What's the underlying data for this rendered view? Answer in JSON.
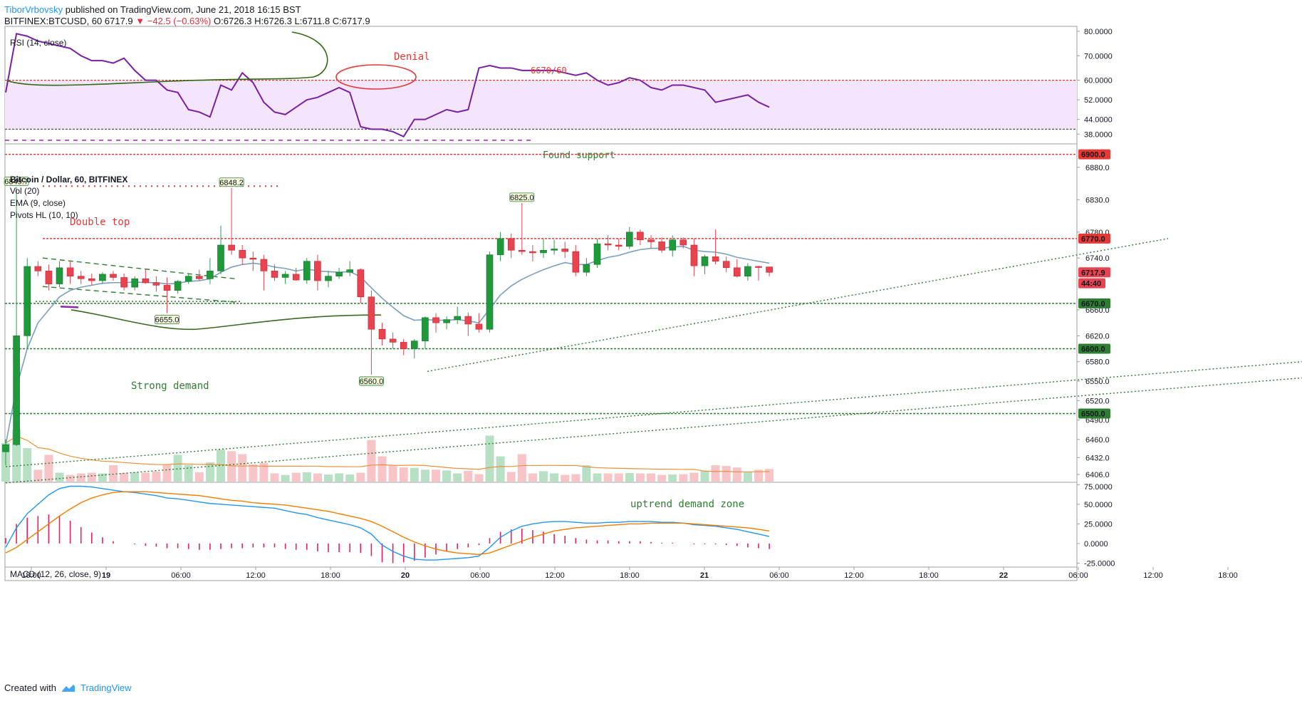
{
  "header": {
    "author": "TiborVrbovsky",
    "published": "published on TradingView.com, June 21, 2018 16:15 BST",
    "symbol": "BITFINEX:BTCUSD, 60",
    "change": "−42.5 (−0.63%)",
    "ohlc": {
      "O": "O:6726.3",
      "H": "H:6726.3",
      "L": "L:6711.8",
      "C": "C:6717.9"
    },
    "last_price": "6717.9"
  },
  "footer": {
    "created_with": "Created with",
    "brand": "TradingView"
  },
  "panes": {
    "rsi": {
      "title": "RSI (14, close)",
      "ticks": [
        "80.0000",
        "70.0000",
        "60.0000",
        "52.0000",
        "44.0000",
        "38.0000"
      ]
    },
    "price": {
      "title": "Bitcoin / Dollar, 60, BITFINEX",
      "indicators": [
        "Vol (20)",
        "EMA (9, close)",
        "Pivots HL (10, 10)"
      ],
      "ticks": [
        "6880.0",
        "6830.0",
        "6780.0",
        "6740.0",
        "6660.0",
        "6620.0",
        "6580.0",
        "6550.0",
        "6520.0",
        "6490.0",
        "6460.0",
        "6432.0",
        "6406.0"
      ],
      "price_tags": [
        "6900.0",
        "6770.0",
        "6717.9",
        "44:40",
        "6670.0",
        "6600.0",
        "6500.0"
      ],
      "pivot_labels": [
        "6849.7",
        "6848.2",
        "6825.0",
        "6655.0",
        "6560.0"
      ]
    },
    "macd": {
      "title": "MACD (12, 26, close, 9)",
      "ticks": [
        "75.0000",
        "50.0000",
        "25.0000",
        "0.0000",
        "-25.0000"
      ]
    }
  },
  "annotations": {
    "denial": "Denial",
    "level": "6670/60",
    "found_support": "Found support",
    "double_top": "Double top",
    "strong_demand": "Strong demand",
    "uptrend_zone": "uptrend demand zone"
  },
  "time_axis": [
    "18:00",
    "19",
    "06:00",
    "12:00",
    "18:00",
    "20",
    "06:00",
    "12:00",
    "18:00",
    "21",
    "06:00",
    "12:00",
    "18:00",
    "22",
    "06:00",
    "12:00",
    "18:00"
  ],
  "colors": {
    "up": "#1e9a3a",
    "down": "#e8434f",
    "rsi": "#7b1fa2",
    "rsi_band": "#f3e5fb",
    "ema": "#7a9fbf",
    "macd": "#2196f3",
    "signal": "#f57c00",
    "hist": "#e91e63",
    "resistance": "#e53935",
    "support": "#2e7d32"
  },
  "chart_data": [
    {
      "type": "line",
      "title": "RSI (14, close)",
      "series": [
        {
          "name": "RSI (14, close)",
          "values": [
            55,
            79,
            78,
            76,
            75,
            74,
            73,
            70,
            68,
            68,
            67,
            69,
            64,
            60,
            60,
            56,
            55,
            48,
            47,
            45,
            58,
            56,
            63,
            59,
            51,
            47,
            46,
            49,
            52,
            53,
            55,
            57,
            55,
            41,
            40,
            40,
            39,
            37,
            44,
            44,
            46,
            48,
            47,
            48,
            65,
            66,
            65,
            65,
            64,
            64,
            64,
            64,
            63,
            62,
            63,
            60,
            58,
            59,
            61,
            60,
            57,
            56,
            58,
            58,
            57,
            56,
            51,
            52,
            53,
            54,
            51,
            49
          ]
        }
      ],
      "ylim": [
        34,
        82
      ]
    },
    {
      "type": "candlestick",
      "title": "Bitcoin / Dollar, 60, BITFINEX",
      "ohlc": [
        [
          6441,
          6460,
          6420,
          6452
        ],
        [
          6452,
          6849.7,
          6450,
          6620
        ],
        [
          6620,
          6740,
          6600,
          6727
        ],
        [
          6727,
          6735,
          6712,
          6720
        ],
        [
          6720,
          6730,
          6690,
          6700
        ],
        [
          6700,
          6735,
          6695,
          6725
        ],
        [
          6725,
          6735,
          6700,
          6712
        ],
        [
          6712,
          6720,
          6700,
          6708
        ],
        [
          6708,
          6716,
          6698,
          6705
        ],
        [
          6705,
          6718,
          6700,
          6715
        ],
        [
          6715,
          6720,
          6705,
          6710
        ],
        [
          6710,
          6716,
          6690,
          6695
        ],
        [
          6695,
          6712,
          6690,
          6708
        ],
        [
          6708,
          6722,
          6700,
          6702
        ],
        [
          6702,
          6712,
          6688,
          6698
        ],
        [
          6698,
          6710,
          6655,
          6690
        ],
        [
          6690,
          6706,
          6685,
          6704
        ],
        [
          6704,
          6715,
          6700,
          6712
        ],
        [
          6712,
          6722,
          6705,
          6708
        ],
        [
          6708,
          6740,
          6700,
          6720
        ],
        [
          6720,
          6790,
          6715,
          6760
        ],
        [
          6760,
          6848.2,
          6745,
          6752
        ],
        [
          6752,
          6760,
          6730,
          6740
        ],
        [
          6740,
          6750,
          6720,
          6738
        ],
        [
          6738,
          6745,
          6690,
          6720
        ],
        [
          6720,
          6730,
          6705,
          6710
        ],
        [
          6710,
          6720,
          6700,
          6715
        ],
        [
          6715,
          6725,
          6705,
          6706
        ],
        [
          6706,
          6740,
          6700,
          6735
        ],
        [
          6735,
          6745,
          6690,
          6705
        ],
        [
          6705,
          6720,
          6695,
          6712
        ],
        [
          6712,
          6725,
          6708,
          6718
        ],
        [
          6718,
          6735,
          6712,
          6722
        ],
        [
          6722,
          6724,
          6670,
          6680
        ],
        [
          6680,
          6690,
          6560,
          6630
        ],
        [
          6630,
          6640,
          6605,
          6615
        ],
        [
          6615,
          6625,
          6600,
          6610
        ],
        [
          6610,
          6615,
          6590,
          6600
        ],
        [
          6600,
          6615,
          6585,
          6612
        ],
        [
          6612,
          6650,
          6600,
          6648
        ],
        [
          6648,
          6655,
          6625,
          6640
        ],
        [
          6640,
          6650,
          6630,
          6645
        ],
        [
          6645,
          6665,
          6638,
          6650
        ],
        [
          6650,
          6656,
          6620,
          6638
        ],
        [
          6638,
          6655,
          6625,
          6630
        ],
        [
          6630,
          6750,
          6625,
          6745
        ],
        [
          6745,
          6780,
          6735,
          6770
        ],
        [
          6770,
          6778,
          6740,
          6752
        ],
        [
          6752,
          6825,
          6745,
          6750
        ],
        [
          6750,
          6760,
          6735,
          6748
        ],
        [
          6748,
          6770,
          6740,
          6752
        ],
        [
          6752,
          6768,
          6745,
          6754
        ],
        [
          6754,
          6765,
          6740,
          6750
        ],
        [
          6750,
          6760,
          6712,
          6718
        ],
        [
          6718,
          6740,
          6712,
          6730
        ],
        [
          6730,
          6770,
          6725,
          6762
        ],
        [
          6762,
          6775,
          6752,
          6760
        ],
        [
          6760,
          6770,
          6752,
          6758
        ],
        [
          6758,
          6788,
          6754,
          6780
        ],
        [
          6780,
          6784,
          6760,
          6768
        ],
        [
          6768,
          6775,
          6755,
          6765
        ],
        [
          6765,
          6772,
          6748,
          6752
        ],
        [
          6752,
          6775,
          6742,
          6768
        ],
        [
          6768,
          6772,
          6755,
          6760
        ],
        [
          6760,
          6770,
          6712,
          6728
        ],
        [
          6728,
          6745,
          6715,
          6742
        ],
        [
          6742,
          6784,
          6730,
          6735
        ],
        [
          6735,
          6742,
          6718,
          6725
        ],
        [
          6725,
          6738,
          6710,
          6712
        ],
        [
          6712,
          6732,
          6705,
          6727
        ],
        [
          6727,
          6728,
          6705,
          6726
        ],
        [
          6726.3,
          6726.3,
          6711.8,
          6717.9
        ]
      ],
      "volume": [
        520,
        700,
        450,
        160,
        360,
        120,
        90,
        110,
        120,
        110,
        220,
        115,
        125,
        120,
        135,
        225,
        360,
        225,
        125,
        260,
        430,
        410,
        370,
        230,
        255,
        110,
        90,
        120,
        125,
        110,
        95,
        110,
        95,
        120,
        560,
        340,
        220,
        190,
        185,
        160,
        160,
        150,
        110,
        145,
        100,
        620,
        340,
        130,
        370,
        110,
        140,
        110,
        90,
        100,
        220,
        110,
        110,
        110,
        115,
        110,
        110,
        90,
        95,
        100,
        120,
        145,
        220,
        210,
        190,
        135,
        160,
        170
      ],
      "ema": [
        6452,
        6540,
        6600,
        6640,
        6660,
        6680,
        6690,
        6695,
        6698,
        6701,
        6702,
        6702,
        6703,
        6702,
        6702,
        6700,
        6701,
        6704,
        6705,
        6708,
        6718,
        6726,
        6730,
        6732,
        6730,
        6726,
        6724,
        6720,
        6723,
        6720,
        6719,
        6718,
        6719,
        6711,
        6694,
        6678,
        6664,
        6651,
        6644,
        6645,
        6644,
        6644,
        6645,
        6643,
        6640,
        6661,
        6683,
        6697,
        6707,
        6715,
        6722,
        6728,
        6733,
        6730,
        6730,
        6736,
        6741,
        6744,
        6749,
        6753,
        6755,
        6755,
        6757,
        6758,
        6752,
        6750,
        6749,
        6746,
        6741,
        6738,
        6735,
        6732
      ],
      "ylim": [
        6395,
        6915
      ]
    },
    {
      "type": "bar",
      "title": "MACD (12, 26, close, 9)",
      "series": [
        {
          "name": "MACD",
          "values": [
            -5,
            20,
            38,
            50,
            62,
            70,
            73,
            73,
            72,
            70,
            68,
            66,
            65,
            63,
            61,
            58,
            57,
            55,
            53,
            51,
            50,
            49,
            48,
            47,
            46,
            45,
            42,
            39,
            37,
            33,
            30,
            27,
            24,
            20,
            12,
            -2,
            -10,
            -16,
            -20,
            -21,
            -21,
            -20,
            -19,
            -18,
            -16,
            -5,
            8,
            16,
            22,
            25,
            27,
            28,
            28,
            27,
            26,
            26,
            27,
            27,
            28,
            28,
            28,
            27,
            27,
            26,
            24,
            23,
            22,
            20,
            18,
            15,
            12,
            9
          ]
        },
        {
          "name": "signal",
          "values": [
            -12,
            -5,
            5,
            15,
            25,
            35,
            44,
            52,
            58,
            62,
            65,
            66,
            66,
            66,
            65,
            64,
            63,
            62,
            61,
            59,
            57,
            55,
            54,
            52,
            51,
            50,
            49,
            47,
            45,
            43,
            41,
            38,
            35,
            32,
            28,
            22,
            15,
            8,
            2,
            -3,
            -7,
            -10,
            -12,
            -13,
            -14,
            -12,
            -7,
            -2,
            3,
            8,
            12,
            16,
            18,
            20,
            21,
            22,
            23,
            24,
            25,
            25,
            26,
            26,
            26,
            26,
            25,
            24,
            23,
            22,
            21,
            20,
            18,
            16
          ]
        },
        {
          "name": "histogram",
          "values": [
            7,
            25,
            33,
            35,
            37,
            35,
            29,
            21,
            14,
            8,
            3,
            0,
            -1,
            -3,
            -4,
            -6,
            -6,
            -7,
            -8,
            -8,
            -7,
            -6,
            -6,
            -5,
            -5,
            -5,
            -7,
            -8,
            -8,
            -10,
            -11,
            -11,
            -11,
            -12,
            -16,
            -24,
            -25,
            -24,
            -22,
            -18,
            -14,
            -10,
            -7,
            -5,
            -2,
            7,
            15,
            18,
            19,
            17,
            15,
            12,
            10,
            7,
            5,
            4,
            4,
            3,
            3,
            3,
            2,
            1,
            1,
            0,
            -1,
            -1,
            -1,
            -2,
            -3,
            -5,
            -6,
            -7
          ]
        }
      ],
      "ylim": [
        -30,
        78
      ]
    }
  ]
}
